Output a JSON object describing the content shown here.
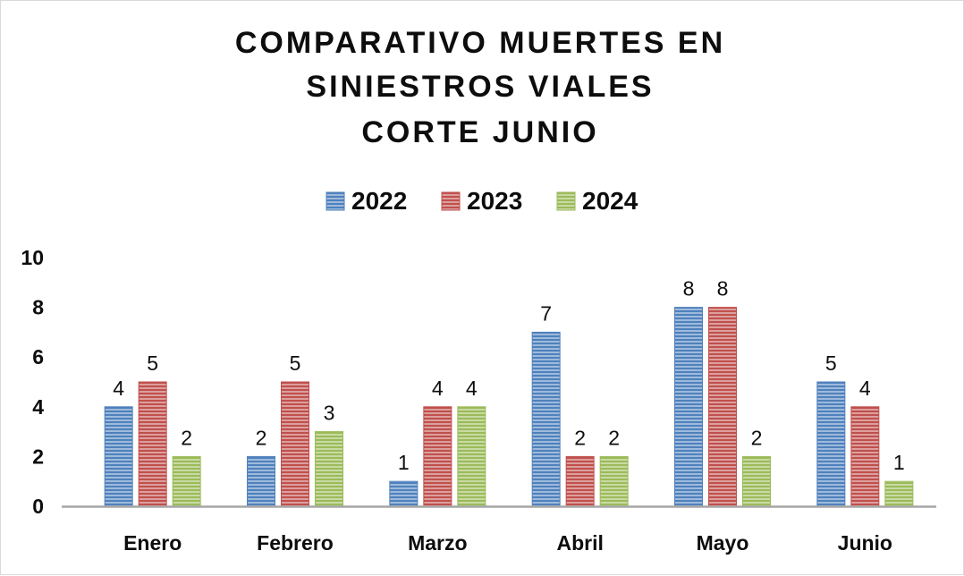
{
  "chart_data": {
    "type": "bar",
    "title_lines": [
      "COMPARATIVO MUERTES EN",
      "SINIESTROS VIALES",
      "CORTE JUNIO"
    ],
    "categories": [
      "Enero",
      "Febrero",
      "Marzo",
      "Abril",
      "Mayo",
      "Junio"
    ],
    "series": [
      {
        "name": "2022",
        "values": [
          4,
          2,
          1,
          7,
          8,
          5
        ],
        "color": "#4f81bd"
      },
      {
        "name": "2023",
        "values": [
          5,
          5,
          4,
          2,
          8,
          4
        ],
        "color": "#c0504d"
      },
      {
        "name": "2024",
        "values": [
          2,
          3,
          4,
          2,
          2,
          1
        ],
        "color": "#9bbb59"
      }
    ],
    "yticks": [
      "0",
      "2",
      "4",
      "6",
      "8",
      "10"
    ],
    "ylim": [
      0,
      10
    ],
    "legend_position": "top",
    "grid": false,
    "data_labels": true,
    "xlabel": "",
    "ylabel": ""
  }
}
